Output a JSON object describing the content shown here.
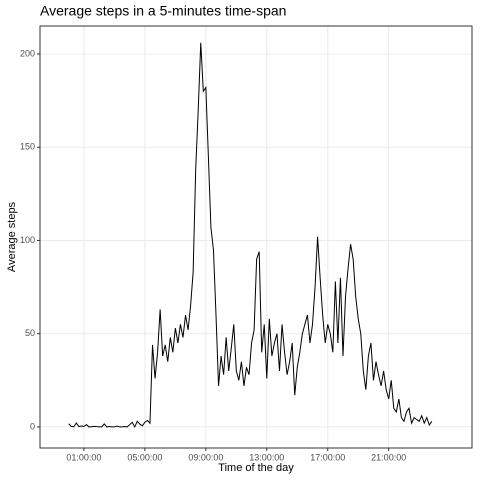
{
  "chart_data": {
    "type": "line",
    "title": "Average steps in a 5-minutes time-span",
    "x_label": "Time of the day",
    "y_label": "Average steps",
    "color": "#000000",
    "grid": true,
    "x": [
      0,
      10,
      20,
      30,
      40,
      50,
      60,
      70,
      80,
      90,
      100,
      110,
      120,
      130,
      140,
      150,
      160,
      170,
      180,
      190,
      200,
      210,
      220,
      230,
      240,
      250,
      260,
      270,
      280,
      290,
      300,
      310,
      320,
      330,
      340,
      350,
      360,
      370,
      380,
      390,
      400,
      410,
      420,
      430,
      440,
      450,
      460,
      470,
      480,
      490,
      500,
      510,
      520,
      530,
      540,
      550,
      560,
      570,
      580,
      590,
      600,
      610,
      620,
      630,
      640,
      650,
      660,
      670,
      680,
      690,
      700,
      710,
      720,
      730,
      740,
      750,
      760,
      770,
      780,
      790,
      800,
      810,
      820,
      830,
      840,
      850,
      860,
      870,
      880,
      890,
      900,
      910,
      920,
      930,
      940,
      950,
      960,
      970,
      980,
      990,
      1000,
      1010,
      1020,
      1030,
      1040,
      1050,
      1060,
      1070,
      1080,
      1090,
      1100,
      1110,
      1120,
      1130,
      1140,
      1150,
      1160,
      1170,
      1180,
      1190,
      1200,
      1210,
      1220,
      1230,
      1240,
      1250,
      1260,
      1270,
      1280,
      1290,
      1300,
      1310,
      1320,
      1330,
      1340,
      1350,
      1360,
      1370,
      1380,
      1390,
      1400,
      1410,
      1420,
      1430
    ],
    "values": [
      1.7,
      0.3,
      0.1,
      2.1,
      0.2,
      0.5,
      0.3,
      1.2,
      0,
      0.1,
      0.3,
      0.2,
      0,
      0,
      1.6,
      0,
      0.2,
      0,
      0,
      0.5,
      0,
      0,
      0.2,
      0,
      1.2,
      2.5,
      0,
      3,
      1.5,
      0.6,
      2.5,
      3.5,
      2,
      44,
      26,
      40,
      63,
      38,
      44,
      35,
      48,
      40,
      53,
      45,
      55,
      48,
      60,
      52,
      65,
      83,
      138,
      170,
      206,
      180,
      182,
      145,
      107,
      95,
      60,
      22,
      38,
      28,
      48,
      30,
      42,
      55,
      30,
      25,
      35,
      22,
      32,
      28,
      45,
      52,
      90,
      94,
      40,
      55,
      26,
      58,
      38,
      45,
      50,
      30,
      55,
      40,
      28,
      35,
      45,
      17,
      32,
      40,
      50,
      55,
      60,
      45,
      55,
      75,
      102,
      80,
      60,
      45,
      55,
      50,
      40,
      78,
      45,
      80,
      38,
      70,
      85,
      98,
      90,
      70,
      58,
      50,
      30,
      20,
      38,
      45,
      25,
      35,
      28,
      22,
      30,
      20,
      15,
      25,
      10,
      8,
      15,
      5,
      3,
      8,
      10,
      2,
      5,
      4,
      3,
      6,
      2,
      5,
      1,
      3
    ],
    "xlim": [
      -113,
      1588
    ],
    "ylim": [
      -11.3,
      215
    ],
    "xticks": [
      {
        "value": 60,
        "label": "01:00:00"
      },
      {
        "value": 300,
        "label": "05:00:00"
      },
      {
        "value": 540,
        "label": "09:00:00"
      },
      {
        "value": 780,
        "label": "13:00:00"
      },
      {
        "value": 1020,
        "label": "17:00:00"
      },
      {
        "value": 1260,
        "label": "21:00:00"
      }
    ],
    "yticks": [
      0,
      50,
      100,
      150,
      200
    ]
  }
}
